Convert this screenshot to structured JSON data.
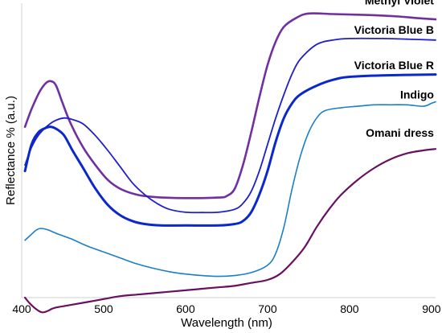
{
  "chart_data": {
    "type": "line",
    "title": "",
    "xlabel": "Wavelength (nm)",
    "ylabel": "Reflectance % (a.u.)",
    "xlim": [
      400,
      905
    ],
    "ylim": [
      0,
      100
    ],
    "x_ticks": [
      400,
      500,
      600,
      700,
      800,
      900
    ],
    "y_ticks_shown": false,
    "grid": false,
    "legend": "inline labels at right end of curves",
    "series": [
      {
        "name": "Methyl Violet",
        "color": "#7030a0",
        "width": 2.6,
        "label_anchor": [
          903,
          98
        ],
        "points": [
          [
            404,
            58
          ],
          [
            412,
            64
          ],
          [
            422,
            70
          ],
          [
            430,
            73
          ],
          [
            436,
            73.5
          ],
          [
            442,
            72
          ],
          [
            450,
            66
          ],
          [
            460,
            59
          ],
          [
            475,
            51
          ],
          [
            490,
            45
          ],
          [
            505,
            40
          ],
          [
            520,
            37
          ],
          [
            540,
            35
          ],
          [
            560,
            34.2
          ],
          [
            600,
            33.8
          ],
          [
            640,
            34
          ],
          [
            650,
            34.5
          ],
          [
            660,
            37
          ],
          [
            670,
            45
          ],
          [
            680,
            56
          ],
          [
            690,
            68
          ],
          [
            700,
            79
          ],
          [
            710,
            87
          ],
          [
            720,
            92
          ],
          [
            735,
            95
          ],
          [
            750,
            96.5
          ],
          [
            780,
            96.3
          ],
          [
            820,
            96
          ],
          [
            860,
            95.5
          ],
          [
            880,
            95
          ],
          [
            905,
            94.5
          ]
        ]
      },
      {
        "name": "Victoria Blue B",
        "color": "#1f1fcc",
        "width": 1.8,
        "label_anchor": [
          903,
          88
        ],
        "points": [
          [
            404,
            45
          ],
          [
            412,
            51
          ],
          [
            420,
            55
          ],
          [
            430,
            58
          ],
          [
            440,
            60
          ],
          [
            452,
            61
          ],
          [
            462,
            60.5
          ],
          [
            475,
            59
          ],
          [
            490,
            55
          ],
          [
            505,
            50
          ],
          [
            520,
            44.5
          ],
          [
            535,
            39
          ],
          [
            550,
            35
          ],
          [
            565,
            32
          ],
          [
            580,
            30
          ],
          [
            600,
            29
          ],
          [
            620,
            28.9
          ],
          [
            640,
            29
          ],
          [
            660,
            30
          ],
          [
            670,
            32
          ],
          [
            680,
            36
          ],
          [
            690,
            43
          ],
          [
            700,
            52
          ],
          [
            710,
            61
          ],
          [
            720,
            69
          ],
          [
            730,
            76
          ],
          [
            740,
            81
          ],
          [
            760,
            86
          ],
          [
            780,
            87.5
          ],
          [
            800,
            88
          ],
          [
            840,
            88
          ],
          [
            870,
            87.8
          ],
          [
            905,
            87.5
          ]
        ]
      },
      {
        "name": "Victoria Blue R",
        "color": "#0a28cc",
        "width": 3.0,
        "label_anchor": [
          903,
          76
        ],
        "points": [
          [
            404,
            43
          ],
          [
            412,
            52
          ],
          [
            420,
            56
          ],
          [
            428,
            57.5
          ],
          [
            436,
            58
          ],
          [
            444,
            57
          ],
          [
            452,
            55
          ],
          [
            462,
            50
          ],
          [
            475,
            44
          ],
          [
            490,
            37
          ],
          [
            505,
            31.5
          ],
          [
            520,
            28
          ],
          [
            535,
            26
          ],
          [
            550,
            25
          ],
          [
            570,
            24.5
          ],
          [
            600,
            24.5
          ],
          [
            640,
            24.5
          ],
          [
            660,
            25
          ],
          [
            670,
            26
          ],
          [
            680,
            29
          ],
          [
            690,
            35
          ],
          [
            700,
            43
          ],
          [
            710,
            53
          ],
          [
            720,
            61
          ],
          [
            730,
            66
          ],
          [
            740,
            69
          ],
          [
            760,
            72
          ],
          [
            780,
            74
          ],
          [
            800,
            75
          ],
          [
            840,
            75.5
          ],
          [
            905,
            75.8
          ]
        ]
      },
      {
        "name": "Indigo",
        "color": "#1a7fc8",
        "width": 1.6,
        "label_anchor": [
          903,
          66
        ],
        "points": [
          [
            404,
            19.5
          ],
          [
            410,
            21
          ],
          [
            418,
            23
          ],
          [
            424,
            23.5
          ],
          [
            432,
            23
          ],
          [
            445,
            21.5
          ],
          [
            460,
            20
          ],
          [
            480,
            17.5
          ],
          [
            500,
            15.5
          ],
          [
            520,
            13.5
          ],
          [
            540,
            11.5
          ],
          [
            560,
            10
          ],
          [
            580,
            8.8
          ],
          [
            600,
            8
          ],
          [
            620,
            7.5
          ],
          [
            640,
            7.2
          ],
          [
            660,
            7.5
          ],
          [
            680,
            8.5
          ],
          [
            700,
            11
          ],
          [
            710,
            15
          ],
          [
            720,
            24
          ],
          [
            730,
            37
          ],
          [
            740,
            48
          ],
          [
            750,
            56
          ],
          [
            760,
            61
          ],
          [
            770,
            63.5
          ],
          [
            790,
            64.5
          ],
          [
            810,
            65
          ],
          [
            830,
            65.5
          ],
          [
            850,
            65.5
          ],
          [
            870,
            65.5
          ],
          [
            890,
            65
          ],
          [
            900,
            66
          ],
          [
            905,
            66.5
          ]
        ]
      },
      {
        "name": "Omani dress",
        "color": "#6a1060",
        "width": 2.2,
        "label_anchor": [
          903,
          53
        ],
        "points": [
          [
            404,
            0
          ],
          [
            410,
            -2
          ],
          [
            418,
            -4
          ],
          [
            425,
            -5
          ],
          [
            432,
            -4.5
          ],
          [
            440,
            -3.5
          ],
          [
            460,
            -2.5
          ],
          [
            480,
            -1.5
          ],
          [
            500,
            -0.5
          ],
          [
            520,
            0.5
          ],
          [
            540,
            1
          ],
          [
            560,
            1.5
          ],
          [
            580,
            2
          ],
          [
            600,
            2.5
          ],
          [
            620,
            3
          ],
          [
            640,
            3.5
          ],
          [
            660,
            4
          ],
          [
            680,
            5
          ],
          [
            700,
            6
          ],
          [
            715,
            8
          ],
          [
            730,
            12
          ],
          [
            745,
            17
          ],
          [
            760,
            24
          ],
          [
            775,
            30
          ],
          [
            790,
            35
          ],
          [
            810,
            40
          ],
          [
            830,
            44
          ],
          [
            850,
            47
          ],
          [
            870,
            49
          ],
          [
            890,
            50
          ],
          [
            905,
            50.5
          ]
        ]
      }
    ]
  }
}
